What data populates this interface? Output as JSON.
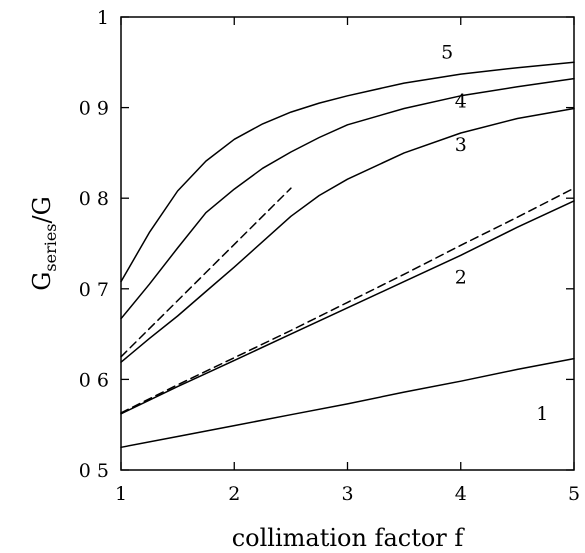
{
  "chart_data": {
    "type": "line",
    "xlabel": "collimation factor f",
    "ylabel": "G",
    "ylabel_subscript": "series",
    "ylabel_suffix": "/G",
    "xlim": [
      1,
      5
    ],
    "ylim": [
      0.5,
      1.0
    ],
    "xticks": [
      1,
      2,
      3,
      4,
      5
    ],
    "yticks": [
      0.5,
      0.6,
      0.7,
      0.8,
      0.9,
      1
    ],
    "ytick_labels": [
      "0 5",
      "0 6",
      "0 7",
      "0 8",
      "0 9",
      "1"
    ],
    "grid": false,
    "legend": "none",
    "series": [
      {
        "name": "1",
        "style": "solid",
        "x": [
          1,
          1.5,
          2,
          2.5,
          3,
          3.5,
          4,
          4.5,
          5
        ],
        "y": [
          0.525,
          0.537,
          0.549,
          0.561,
          0.573,
          0.586,
          0.598,
          0.611,
          0.623
        ]
      },
      {
        "name": "2",
        "style": "solid",
        "x": [
          1,
          1.5,
          2,
          2.5,
          3,
          3.5,
          4,
          4.5,
          5
        ],
        "y": [
          0.562,
          0.592,
          0.621,
          0.65,
          0.679,
          0.708,
          0.737,
          0.768,
          0.797
        ]
      },
      {
        "name": "3",
        "style": "solid",
        "x": [
          1,
          1.25,
          1.5,
          1.75,
          2,
          2.25,
          2.5,
          2.75,
          3,
          3.5,
          4,
          4.5,
          5
        ],
        "y": [
          0.619,
          0.645,
          0.67,
          0.697,
          0.724,
          0.752,
          0.78,
          0.803,
          0.821,
          0.85,
          0.872,
          0.888,
          0.899
        ]
      },
      {
        "name": "4",
        "style": "solid",
        "x": [
          1,
          1.25,
          1.5,
          1.75,
          2,
          2.25,
          2.5,
          2.75,
          3,
          3.5,
          4,
          4.5,
          5
        ],
        "y": [
          0.667,
          0.705,
          0.745,
          0.784,
          0.81,
          0.833,
          0.851,
          0.867,
          0.881,
          0.899,
          0.913,
          0.923,
          0.932
        ]
      },
      {
        "name": "5",
        "style": "solid",
        "x": [
          1,
          1.25,
          1.5,
          1.75,
          2,
          2.25,
          2.5,
          2.75,
          3,
          3.5,
          4,
          4.5,
          5
        ],
        "y": [
          0.708,
          0.762,
          0.808,
          0.841,
          0.865,
          0.882,
          0.895,
          0.905,
          0.913,
          0.927,
          0.937,
          0.944,
          0.95
        ]
      },
      {
        "name": "",
        "style": "dashed",
        "x": [
          1,
          2.5
        ],
        "y": [
          0.625,
          0.811
        ]
      },
      {
        "name": "",
        "style": "dashed",
        "x": [
          1,
          1.5,
          2,
          2.5,
          3,
          3.5,
          4,
          4.5,
          5
        ],
        "y": [
          0.563,
          0.594,
          0.624,
          0.654,
          0.685,
          0.716,
          0.748,
          0.779,
          0.811
        ]
      }
    ],
    "series_labels": [
      {
        "text": "1",
        "x": 4.72,
        "y": 0.555
      },
      {
        "text": "2",
        "x": 4.0,
        "y": 0.706
      },
      {
        "text": "3",
        "x": 4.0,
        "y": 0.852
      },
      {
        "text": "4",
        "x": 4.0,
        "y": 0.9
      },
      {
        "text": "5",
        "x": 3.88,
        "y": 0.954
      }
    ]
  }
}
